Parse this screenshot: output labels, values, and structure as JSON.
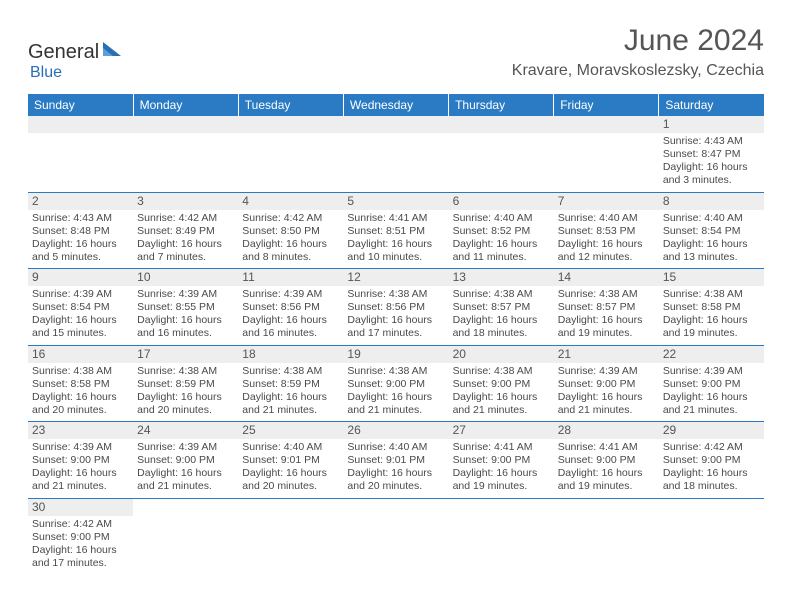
{
  "logo": {
    "brand_a": "General",
    "brand_b": "Blue"
  },
  "title": "June 2024",
  "location": "Kravare, Moravskoslezsky, Czechia",
  "colors": {
    "header_bg": "#2a7bc4",
    "header_text": "#ffffff",
    "daynum_bg": "#eeeeee",
    "cell_border": "#2a7bc4",
    "text": "#4a4a4a",
    "logo_blue": "#2a6fb5"
  },
  "typography": {
    "title_fontsize": 30,
    "location_fontsize": 16,
    "daynum_fontsize": 12,
    "cell_fontsize": 10.5
  },
  "days_of_week": [
    "Sunday",
    "Monday",
    "Tuesday",
    "Wednesday",
    "Thursday",
    "Friday",
    "Saturday"
  ],
  "weeks": [
    [
      {
        "blank": true
      },
      {
        "blank": true
      },
      {
        "blank": true
      },
      {
        "blank": true
      },
      {
        "blank": true
      },
      {
        "blank": true
      },
      {
        "num": "1",
        "sunrise": "Sunrise: 4:43 AM",
        "sunset": "Sunset: 8:47 PM",
        "daylight": "Daylight: 16 hours and 3 minutes."
      }
    ],
    [
      {
        "num": "2",
        "sunrise": "Sunrise: 4:43 AM",
        "sunset": "Sunset: 8:48 PM",
        "daylight": "Daylight: 16 hours and 5 minutes."
      },
      {
        "num": "3",
        "sunrise": "Sunrise: 4:42 AM",
        "sunset": "Sunset: 8:49 PM",
        "daylight": "Daylight: 16 hours and 7 minutes."
      },
      {
        "num": "4",
        "sunrise": "Sunrise: 4:42 AM",
        "sunset": "Sunset: 8:50 PM",
        "daylight": "Daylight: 16 hours and 8 minutes."
      },
      {
        "num": "5",
        "sunrise": "Sunrise: 4:41 AM",
        "sunset": "Sunset: 8:51 PM",
        "daylight": "Daylight: 16 hours and 10 minutes."
      },
      {
        "num": "6",
        "sunrise": "Sunrise: 4:40 AM",
        "sunset": "Sunset: 8:52 PM",
        "daylight": "Daylight: 16 hours and 11 minutes."
      },
      {
        "num": "7",
        "sunrise": "Sunrise: 4:40 AM",
        "sunset": "Sunset: 8:53 PM",
        "daylight": "Daylight: 16 hours and 12 minutes."
      },
      {
        "num": "8",
        "sunrise": "Sunrise: 4:40 AM",
        "sunset": "Sunset: 8:54 PM",
        "daylight": "Daylight: 16 hours and 13 minutes."
      }
    ],
    [
      {
        "num": "9",
        "sunrise": "Sunrise: 4:39 AM",
        "sunset": "Sunset: 8:54 PM",
        "daylight": "Daylight: 16 hours and 15 minutes."
      },
      {
        "num": "10",
        "sunrise": "Sunrise: 4:39 AM",
        "sunset": "Sunset: 8:55 PM",
        "daylight": "Daylight: 16 hours and 16 minutes."
      },
      {
        "num": "11",
        "sunrise": "Sunrise: 4:39 AM",
        "sunset": "Sunset: 8:56 PM",
        "daylight": "Daylight: 16 hours and 16 minutes."
      },
      {
        "num": "12",
        "sunrise": "Sunrise: 4:38 AM",
        "sunset": "Sunset: 8:56 PM",
        "daylight": "Daylight: 16 hours and 17 minutes."
      },
      {
        "num": "13",
        "sunrise": "Sunrise: 4:38 AM",
        "sunset": "Sunset: 8:57 PM",
        "daylight": "Daylight: 16 hours and 18 minutes."
      },
      {
        "num": "14",
        "sunrise": "Sunrise: 4:38 AM",
        "sunset": "Sunset: 8:57 PM",
        "daylight": "Daylight: 16 hours and 19 minutes."
      },
      {
        "num": "15",
        "sunrise": "Sunrise: 4:38 AM",
        "sunset": "Sunset: 8:58 PM",
        "daylight": "Daylight: 16 hours and 19 minutes."
      }
    ],
    [
      {
        "num": "16",
        "sunrise": "Sunrise: 4:38 AM",
        "sunset": "Sunset: 8:58 PM",
        "daylight": "Daylight: 16 hours and 20 minutes."
      },
      {
        "num": "17",
        "sunrise": "Sunrise: 4:38 AM",
        "sunset": "Sunset: 8:59 PM",
        "daylight": "Daylight: 16 hours and 20 minutes."
      },
      {
        "num": "18",
        "sunrise": "Sunrise: 4:38 AM",
        "sunset": "Sunset: 8:59 PM",
        "daylight": "Daylight: 16 hours and 21 minutes."
      },
      {
        "num": "19",
        "sunrise": "Sunrise: 4:38 AM",
        "sunset": "Sunset: 9:00 PM",
        "daylight": "Daylight: 16 hours and 21 minutes."
      },
      {
        "num": "20",
        "sunrise": "Sunrise: 4:38 AM",
        "sunset": "Sunset: 9:00 PM",
        "daylight": "Daylight: 16 hours and 21 minutes."
      },
      {
        "num": "21",
        "sunrise": "Sunrise: 4:39 AM",
        "sunset": "Sunset: 9:00 PM",
        "daylight": "Daylight: 16 hours and 21 minutes."
      },
      {
        "num": "22",
        "sunrise": "Sunrise: 4:39 AM",
        "sunset": "Sunset: 9:00 PM",
        "daylight": "Daylight: 16 hours and 21 minutes."
      }
    ],
    [
      {
        "num": "23",
        "sunrise": "Sunrise: 4:39 AM",
        "sunset": "Sunset: 9:00 PM",
        "daylight": "Daylight: 16 hours and 21 minutes."
      },
      {
        "num": "24",
        "sunrise": "Sunrise: 4:39 AM",
        "sunset": "Sunset: 9:00 PM",
        "daylight": "Daylight: 16 hours and 21 minutes."
      },
      {
        "num": "25",
        "sunrise": "Sunrise: 4:40 AM",
        "sunset": "Sunset: 9:01 PM",
        "daylight": "Daylight: 16 hours and 20 minutes."
      },
      {
        "num": "26",
        "sunrise": "Sunrise: 4:40 AM",
        "sunset": "Sunset: 9:01 PM",
        "daylight": "Daylight: 16 hours and 20 minutes."
      },
      {
        "num": "27",
        "sunrise": "Sunrise: 4:41 AM",
        "sunset": "Sunset: 9:00 PM",
        "daylight": "Daylight: 16 hours and 19 minutes."
      },
      {
        "num": "28",
        "sunrise": "Sunrise: 4:41 AM",
        "sunset": "Sunset: 9:00 PM",
        "daylight": "Daylight: 16 hours and 19 minutes."
      },
      {
        "num": "29",
        "sunrise": "Sunrise: 4:42 AM",
        "sunset": "Sunset: 9:00 PM",
        "daylight": "Daylight: 16 hours and 18 minutes."
      }
    ],
    [
      {
        "num": "30",
        "sunrise": "Sunrise: 4:42 AM",
        "sunset": "Sunset: 9:00 PM",
        "daylight": "Daylight: 16 hours and 17 minutes."
      },
      {
        "blank": true
      },
      {
        "blank": true
      },
      {
        "blank": true
      },
      {
        "blank": true
      },
      {
        "blank": true
      },
      {
        "blank": true
      }
    ]
  ]
}
